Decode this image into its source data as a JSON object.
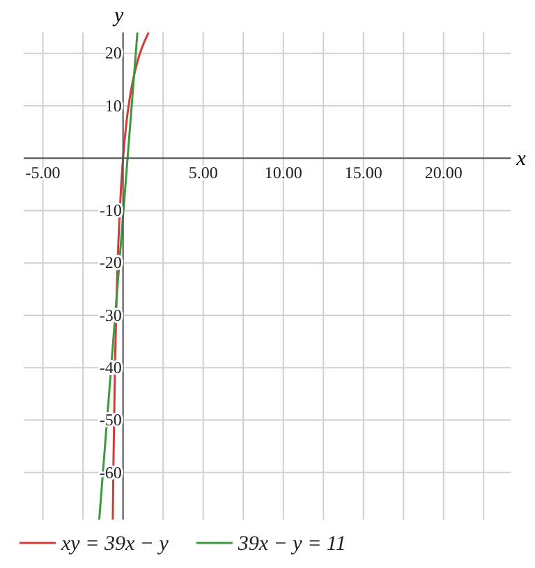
{
  "chart_data": {
    "type": "line",
    "xlabel": "x",
    "ylabel": "y",
    "xlim": [
      -6.2,
      24.2
    ],
    "ylim": [
      -69,
      24
    ],
    "xticks": [
      {
        "value": -5,
        "label": "-5.00"
      },
      {
        "value": -2.5,
        "label": null
      },
      {
        "value": 0,
        "label": null
      },
      {
        "value": 2.5,
        "label": null
      },
      {
        "value": 5,
        "label": "5.00"
      },
      {
        "value": 7.5,
        "label": null
      },
      {
        "value": 10,
        "label": "10.00"
      },
      {
        "value": 12.5,
        "label": null
      },
      {
        "value": 15,
        "label": "15.00"
      },
      {
        "value": 17.5,
        "label": null
      },
      {
        "value": 20,
        "label": "20.00"
      },
      {
        "value": 22.5,
        "label": null
      }
    ],
    "yticks": [
      -60,
      -50,
      -40,
      -30,
      -20,
      -10,
      {
        "value": 0,
        "label": null
      },
      10,
      20
    ],
    "grid": true,
    "legend": "bottom",
    "marker": "none",
    "line_style": "solid",
    "series": [
      {
        "name": "xy = 39x − y",
        "color": "#d43a3a",
        "x": [
          -0.639,
          -0.6,
          -0.5,
          -0.4,
          -0.3,
          -0.2,
          -0.1,
          0,
          0.2,
          0.4,
          0.6,
          0.8,
          1.0,
          1.3,
          1.6
        ],
        "values": [
          -69,
          -58.5,
          -39,
          -26,
          -16.7,
          -9.8,
          -4.3,
          0,
          6.5,
          11.1,
          14.6,
          17.3,
          19.5,
          22,
          24
        ]
      },
      {
        "name": "39x − y = 11",
        "color": "#3c9a3c",
        "x": [
          -1.487,
          0.897
        ],
        "values": [
          -69,
          24
        ]
      }
    ]
  }
}
